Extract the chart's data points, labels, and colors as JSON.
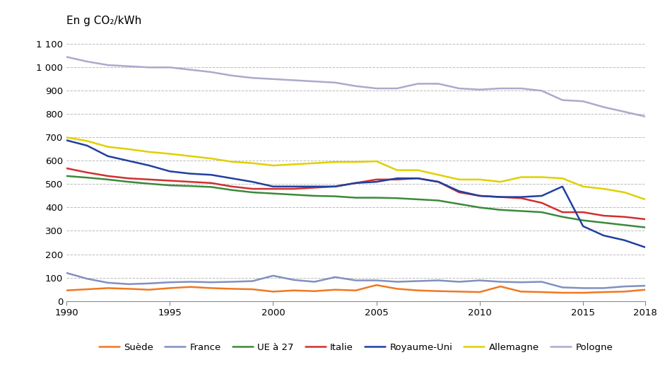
{
  "years": [
    1990,
    1991,
    1992,
    1993,
    1994,
    1995,
    1996,
    1997,
    1998,
    1999,
    2000,
    2001,
    2002,
    2003,
    2004,
    2005,
    2006,
    2007,
    2008,
    2009,
    2010,
    2011,
    2012,
    2013,
    2014,
    2015,
    2016,
    2017,
    2018
  ],
  "series": {
    "Suède": [
      45,
      50,
      55,
      52,
      48,
      55,
      60,
      55,
      52,
      50,
      40,
      45,
      42,
      48,
      45,
      68,
      52,
      45,
      42,
      40,
      38,
      62,
      40,
      38,
      35,
      35,
      38,
      40,
      48
    ],
    "France": [
      120,
      95,
      78,
      72,
      75,
      80,
      82,
      80,
      82,
      85,
      108,
      90,
      82,
      102,
      88,
      88,
      82,
      85,
      88,
      82,
      88,
      82,
      80,
      82,
      58,
      55,
      55,
      62,
      65
    ],
    "UE à 27": [
      535,
      528,
      520,
      510,
      502,
      495,
      492,
      488,
      475,
      465,
      460,
      455,
      450,
      448,
      442,
      442,
      440,
      435,
      430,
      415,
      400,
      390,
      385,
      380,
      360,
      345,
      335,
      325,
      315
    ],
    "Italie": [
      568,
      550,
      535,
      525,
      520,
      515,
      510,
      505,
      490,
      480,
      480,
      480,
      485,
      490,
      505,
      520,
      520,
      525,
      510,
      465,
      450,
      445,
      440,
      420,
      380,
      380,
      365,
      360,
      350
    ],
    "Royaume-Uni": [
      688,
      665,
      620,
      600,
      580,
      555,
      545,
      540,
      525,
      510,
      490,
      490,
      490,
      490,
      505,
      510,
      525,
      525,
      510,
      470,
      450,
      445,
      445,
      450,
      490,
      320,
      280,
      260,
      230
    ],
    "Allemagne": [
      700,
      685,
      660,
      650,
      638,
      630,
      620,
      610,
      596,
      590,
      580,
      585,
      590,
      595,
      595,
      598,
      560,
      560,
      540,
      520,
      520,
      510,
      530,
      530,
      525,
      490,
      480,
      465,
      435
    ],
    "Pologne": [
      1045,
      1025,
      1010,
      1005,
      1000,
      1000,
      990,
      980,
      965,
      955,
      950,
      945,
      940,
      935,
      920,
      910,
      910,
      930,
      930,
      910,
      905,
      910,
      910,
      900,
      860,
      855,
      830,
      810,
      790
    ]
  },
  "colors": {
    "Suède": "#F07820",
    "France": "#8090C0",
    "UE à 27": "#3A8A3A",
    "Italie": "#D03030",
    "Royaume-Uni": "#2040A0",
    "Allemagne": "#E0D000",
    "Pologne": "#AAAACC"
  },
  "top_label": "En g CO₂/kWh",
  "ylim": [
    0,
    1100
  ],
  "yticks": [
    0,
    100,
    200,
    300,
    400,
    500,
    600,
    700,
    800,
    900,
    1000,
    1100
  ],
  "ytick_labels": [
    "0",
    "100",
    "200",
    "300",
    "400",
    "500",
    "600",
    "700",
    "800",
    "900",
    "1 000",
    "1 100"
  ],
  "xlim": [
    1990,
    2018
  ],
  "xticks": [
    1990,
    1995,
    2000,
    2005,
    2010,
    2015,
    2018
  ],
  "background_color": "#FFFFFF",
  "grid_color": "#BBBBBB",
  "legend_order": [
    "Suède",
    "France",
    "UE à 27",
    "Italie",
    "Royaume-Uni",
    "Allemagne",
    "Pologne"
  ]
}
